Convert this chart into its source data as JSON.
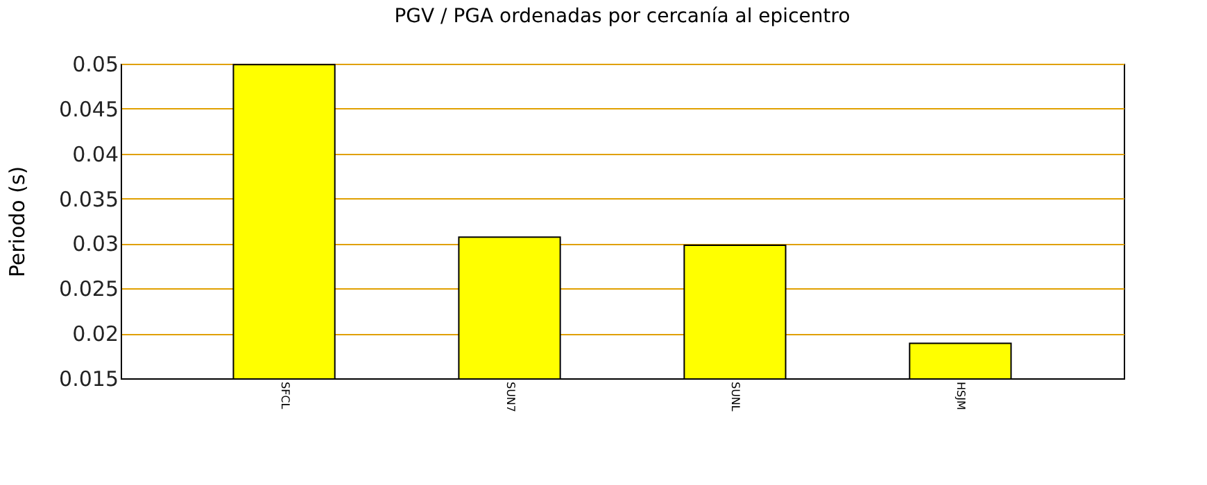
{
  "chart_data": {
    "type": "bar",
    "title": "PGV / PGA ordenadas por cercanía al epicentro",
    "ylabel": "Periodo (s)",
    "categories": [
      "SFCL",
      "SUN7",
      "SUNL",
      "HSJM"
    ],
    "values": [
      0.0499,
      0.0307,
      0.0298,
      0.0189
    ],
    "color": "#ffff00",
    "ylim": [
      0.015,
      0.05
    ],
    "yticks": [
      0.015,
      0.02,
      0.025,
      0.03,
      0.035,
      0.04,
      0.045,
      0.05
    ],
    "grid": "y"
  }
}
